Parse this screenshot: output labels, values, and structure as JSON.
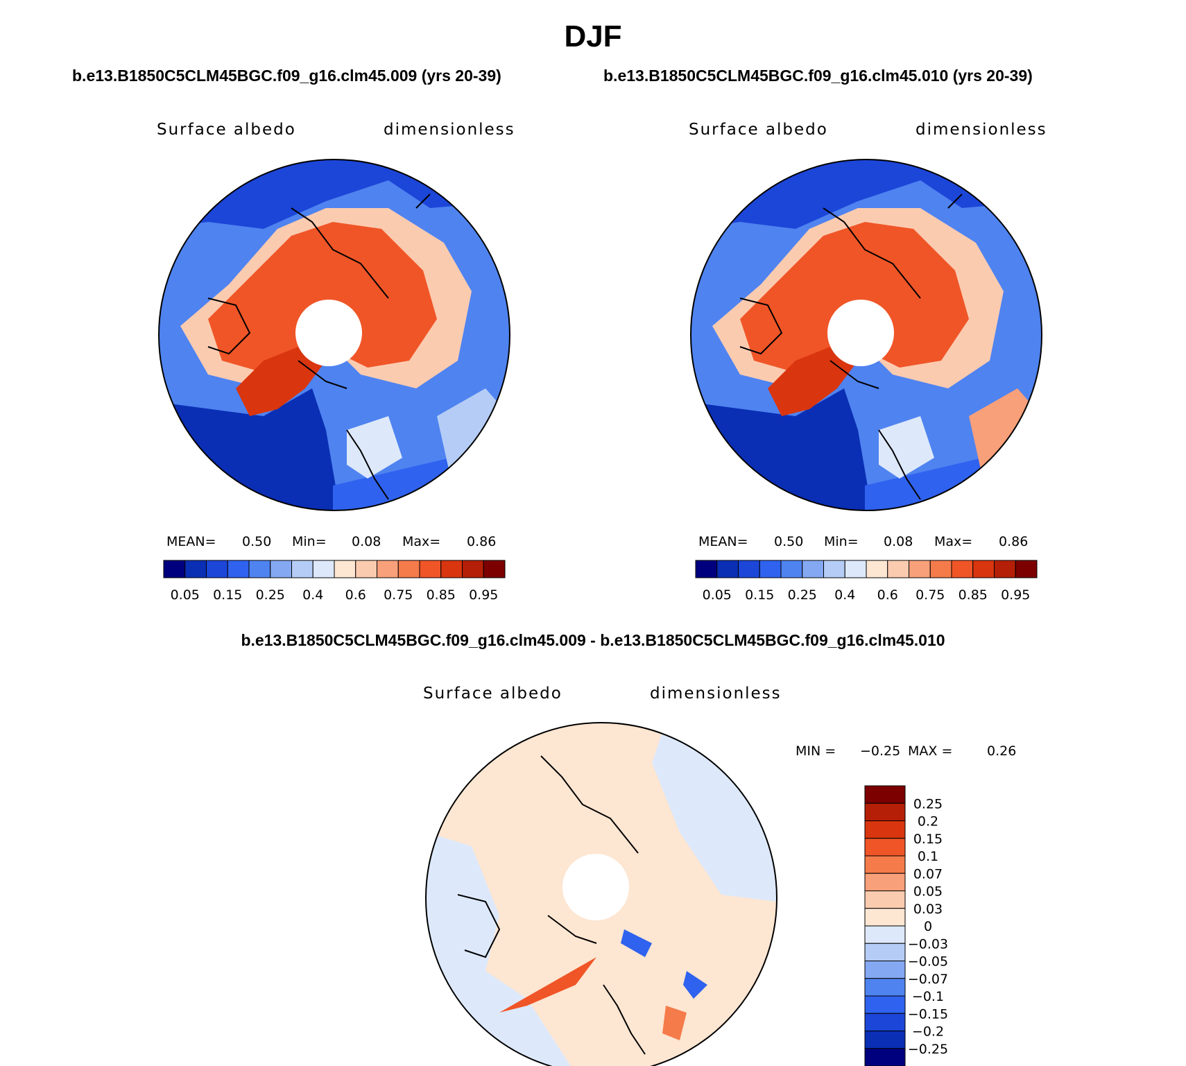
{
  "title": "DJF",
  "run_a": "b.e13.B1850C5CLM45BGC.f09_g16.clm45.009 (yrs 20-39)",
  "run_b": "b.e13.B1850C5CLM45BGC.f09_g16.clm45.010 (yrs 20-39)",
  "diff_title": "b.e13.B1850C5CLM45BGC.f09_g16.clm45.009 - b.e13.B1850C5CLM45BGC.f09_g16.clm45.010",
  "variable": "Surface albedo",
  "units": "dimensionless",
  "panel_a": {
    "mean_label": "MEAN=",
    "mean": "0.50",
    "min_label": "Min=",
    "min": "0.08",
    "max_label": "Max=",
    "max": "0.86"
  },
  "panel_b": {
    "mean_label": "MEAN=",
    "mean": "0.50",
    "min_label": "Min=",
    "min": "0.08",
    "max_label": "Max=",
    "max": "0.86"
  },
  "diff_stats": {
    "min_label": "MIN =",
    "min": "−0.25",
    "max_label": "MAX =",
    "max": "0.26"
  },
  "colorbar_main": {
    "tick_labels": [
      "0.05",
      "0.15",
      "0.25",
      "0.4",
      "0.6",
      "0.75",
      "0.85",
      "0.95"
    ],
    "colors": [
      "#00007f",
      "#0a2fb4",
      "#1c46d8",
      "#2f62ee",
      "#4f83f0",
      "#84a9f2",
      "#b5cdf6",
      "#dde9fb",
      "#fde6d2",
      "#fbcbb0",
      "#f8a07a",
      "#f57b4b",
      "#f05527",
      "#d9360f",
      "#b51f07",
      "#7d0000"
    ]
  },
  "colorbar_diff": {
    "tick_labels": [
      "0.25",
      "0.2",
      "0.15",
      "0.1",
      "0.07",
      "0.05",
      "0.03",
      "0",
      "−0.03",
      "−0.05",
      "−0.07",
      "−0.1",
      "−0.15",
      "−0.2",
      "−0.25"
    ],
    "colors": [
      "#7d0000",
      "#b51f07",
      "#d9360f",
      "#f05527",
      "#f57b4b",
      "#f8a07a",
      "#fbcbb0",
      "#fde6d2",
      "#dde9fb",
      "#b5cdf6",
      "#84a9f2",
      "#4f83f0",
      "#2f62ee",
      "#1c46d8",
      "#0a2fb4",
      "#00007f"
    ]
  },
  "map_colors": {
    "ocean_low": "#1c46d8",
    "ocean_mid": "#4f83f0",
    "land_mid": "#fbcbb0",
    "snow_high": "#f05527",
    "ice_high": "#d9360f",
    "diff_pos": "#fde6d2",
    "diff_neg": "#dde9fb"
  }
}
